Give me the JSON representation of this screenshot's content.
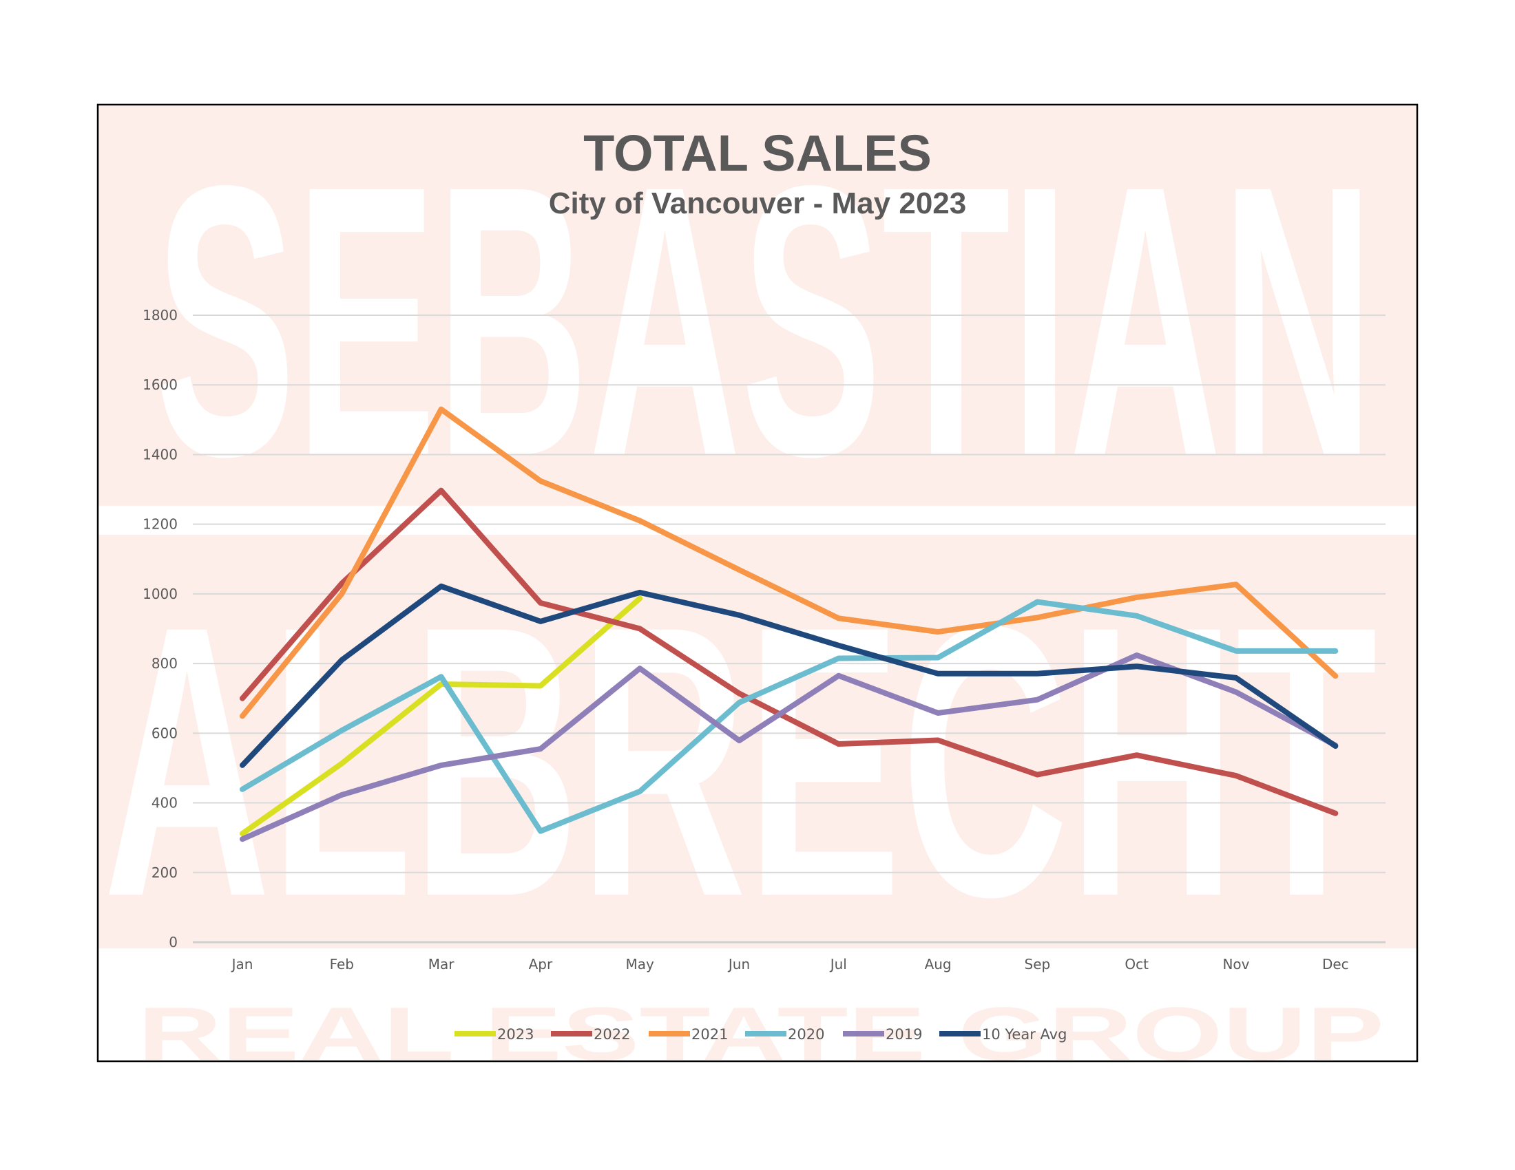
{
  "chart_data": {
    "type": "line",
    "title": "TOTAL SALES",
    "subtitle": "City of Vancouver - May 2023",
    "xlabel": "",
    "ylabel": "",
    "categories": [
      "Jan",
      "Feb",
      "Mar",
      "Apr",
      "May",
      "Jun",
      "Jul",
      "Aug",
      "Sep",
      "Oct",
      "Nov",
      "Dec"
    ],
    "ylim": [
      0,
      1800
    ],
    "yticks": [
      0,
      200,
      400,
      600,
      800,
      1000,
      1200,
      1400,
      1600,
      1800
    ],
    "grid": true,
    "legend_position": "bottom",
    "series": [
      {
        "name": "2023",
        "color": "#d9e021",
        "values": [
          312,
          513,
          741,
          736,
          987,
          null,
          null,
          null,
          null,
          null,
          null,
          null
        ]
      },
      {
        "name": "2022",
        "color": "#c0504d",
        "values": [
          700,
          1030,
          1297,
          974,
          900,
          714,
          569,
          580,
          481,
          537,
          478,
          370
        ]
      },
      {
        "name": "2021",
        "color": "#f79646",
        "values": [
          649,
          1000,
          1530,
          1324,
          1210,
          1069,
          930,
          891,
          932,
          990,
          1027,
          764
        ]
      },
      {
        "name": "2020",
        "color": "#6cbcd0",
        "values": [
          439,
          608,
          762,
          319,
          433,
          688,
          815,
          817,
          977,
          937,
          836,
          836
        ]
      },
      {
        "name": "2019",
        "color": "#8f7fb8",
        "values": [
          296,
          423,
          508,
          555,
          786,
          579,
          765,
          658,
          696,
          824,
          718,
          565
        ]
      },
      {
        "name": "10 Year Avg",
        "color": "#1f497d",
        "values": [
          508,
          810,
          1022,
          921,
          1004,
          939,
          852,
          771,
          771,
          792,
          759,
          563
        ]
      }
    ]
  },
  "watermark": {
    "line1": "SEBASTIAN",
    "line2": "ALBRECHT",
    "line3": "REAL ESTATE GROUP"
  },
  "colors": {
    "background": "#fdeee9",
    "text": "#595959",
    "frame": "#000000"
  }
}
